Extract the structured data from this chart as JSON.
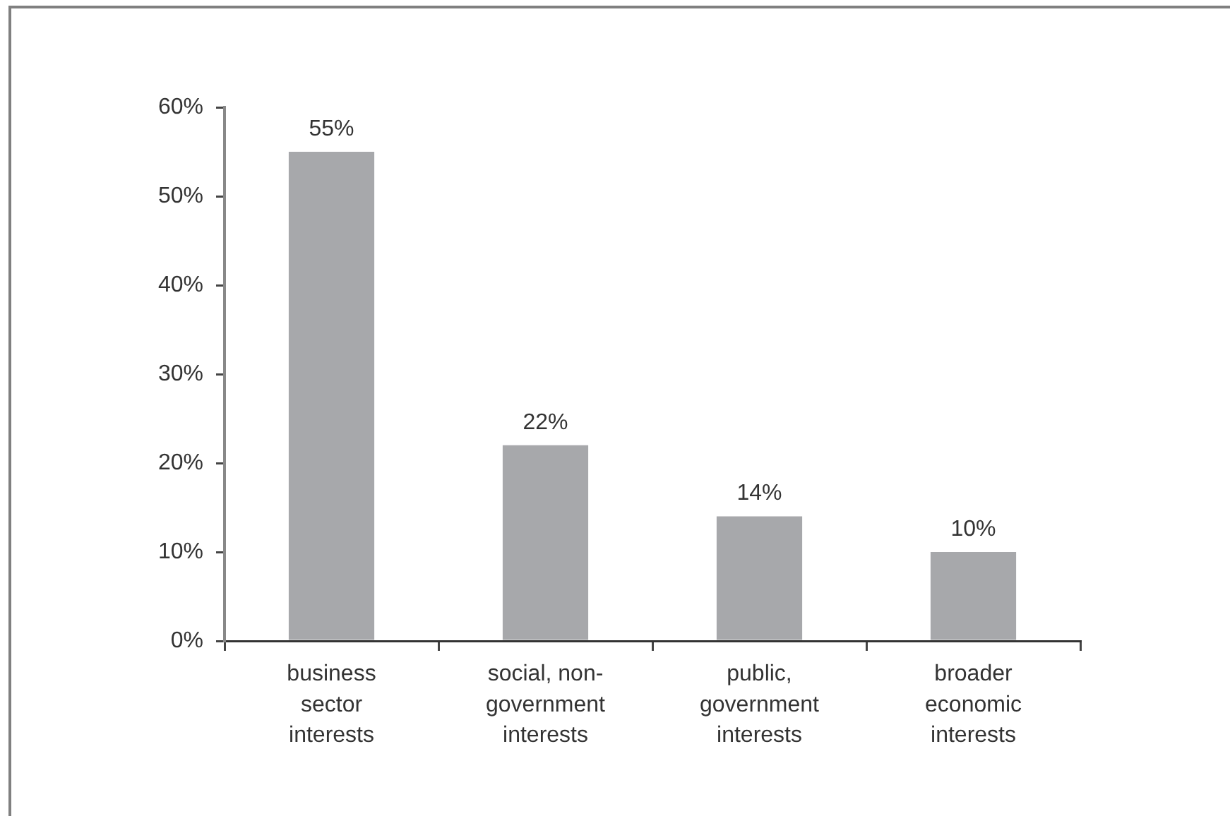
{
  "chart_data": {
    "type": "bar",
    "categories": [
      "business sector interests",
      "social, non-government interests",
      "public, government interests",
      "broader economic interests"
    ],
    "values": [
      55,
      22,
      14,
      10
    ],
    "color": "#a7a8ab",
    "value_labels": [
      "55%",
      "22%",
      "14%",
      "10%"
    ],
    "ylim": [
      0,
      60
    ],
    "yticks": [
      {
        "value": 0,
        "label": "0%"
      },
      {
        "value": 10,
        "label": "10%"
      },
      {
        "value": 20,
        "label": "20%"
      },
      {
        "value": 30,
        "label": "30%"
      },
      {
        "value": 40,
        "label": "40%"
      },
      {
        "value": 50,
        "label": "50%"
      },
      {
        "value": 60,
        "label": "60%"
      }
    ]
  }
}
